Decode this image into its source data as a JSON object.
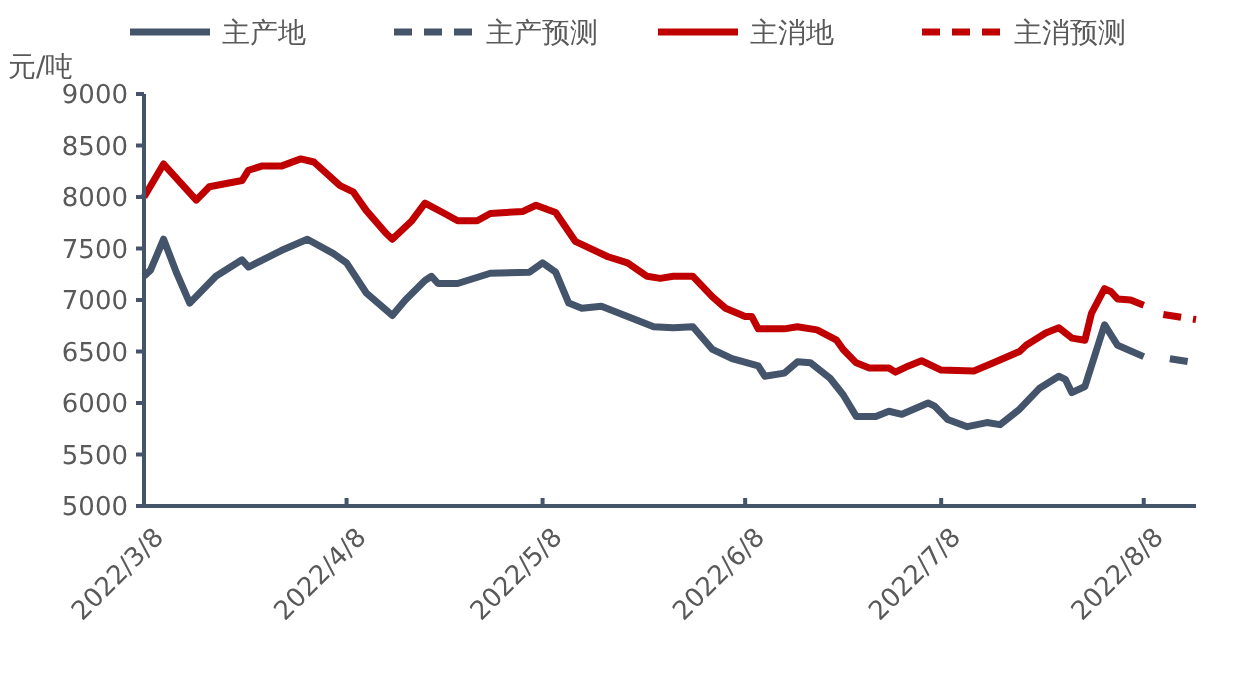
{
  "chart_data": {
    "type": "line",
    "ylabel": "元/吨",
    "legend": "top",
    "grid": false,
    "marker": "none",
    "xlim": [
      "2022-03-08",
      "2022-08-16"
    ],
    "xticks": [
      {
        "value": "2022-03-08",
        "label": "2022/3/8"
      },
      {
        "value": "2022-04-08",
        "label": "2022/4/8"
      },
      {
        "value": "2022-05-08",
        "label": "2022/5/8"
      },
      {
        "value": "2022-06-08",
        "label": "2022/6/8"
      },
      {
        "value": "2022-07-08",
        "label": "2022/7/8"
      },
      {
        "value": "2022-08-08",
        "label": "2022/8/8"
      }
    ],
    "ylim": [
      5000,
      9000
    ],
    "yticks": [
      5000,
      5500,
      6000,
      6500,
      7000,
      7500,
      8000,
      8500,
      9000
    ],
    "series": [
      {
        "name": "主产地",
        "color": "#44546a",
        "line_style": "solid",
        "x": [
          "2022-03-08",
          "2022-03-09",
          "2022-03-11",
          "2022-03-13",
          "2022-03-15",
          "2022-03-19",
          "2022-03-23",
          "2022-03-24",
          "2022-03-29",
          "2022-04-02",
          "2022-04-06",
          "2022-04-08",
          "2022-04-11",
          "2022-04-15",
          "2022-04-17",
          "2022-04-20",
          "2022-04-21",
          "2022-04-22",
          "2022-04-25",
          "2022-04-30",
          "2022-05-06",
          "2022-05-08",
          "2022-05-10",
          "2022-05-12",
          "2022-05-14",
          "2022-05-17",
          "2022-05-21",
          "2022-05-25",
          "2022-05-28",
          "2022-05-31",
          "2022-06-03",
          "2022-06-06",
          "2022-06-10",
          "2022-06-11",
          "2022-06-14",
          "2022-06-16",
          "2022-06-18",
          "2022-06-21",
          "2022-06-23",
          "2022-06-25",
          "2022-06-28",
          "2022-06-30",
          "2022-07-02",
          "2022-07-06",
          "2022-07-07",
          "2022-07-09",
          "2022-07-12",
          "2022-07-15",
          "2022-07-17",
          "2022-07-20",
          "2022-07-23",
          "2022-07-26",
          "2022-07-27",
          "2022-07-28",
          "2022-07-30",
          "2022-08-02",
          "2022-08-04",
          "2022-08-08"
        ],
        "values": [
          7230,
          7290,
          7590,
          7260,
          6970,
          7230,
          7390,
          7320,
          7480,
          7590,
          7450,
          7360,
          7070,
          6850,
          7000,
          7190,
          7230,
          7160,
          7160,
          7260,
          7270,
          7360,
          7270,
          6970,
          6920,
          6940,
          6840,
          6740,
          6730,
          6740,
          6520,
          6430,
          6360,
          6260,
          6290,
          6400,
          6390,
          6240,
          6080,
          5870,
          5870,
          5920,
          5890,
          6000,
          5970,
          5840,
          5770,
          5810,
          5790,
          5940,
          6140,
          6260,
          6230,
          6100,
          6160,
          6760,
          6560,
          6450
        ]
      },
      {
        "name": "主产预测",
        "color": "#44546a",
        "line_style": "dashed",
        "x": [
          "2022-08-12",
          "2022-08-16"
        ],
        "values": [
          6430,
          6390
        ]
      },
      {
        "name": "主消地",
        "color": "#c00000",
        "line_style": "solid",
        "x": [
          "2022-03-08",
          "2022-03-11",
          "2022-03-16",
          "2022-03-18",
          "2022-03-23",
          "2022-03-24",
          "2022-03-26",
          "2022-03-29",
          "2022-04-01",
          "2022-04-03",
          "2022-04-07",
          "2022-04-09",
          "2022-04-11",
          "2022-04-14",
          "2022-04-15",
          "2022-04-18",
          "2022-04-20",
          "2022-04-23",
          "2022-04-25",
          "2022-04-28",
          "2022-04-30",
          "2022-05-05",
          "2022-05-07",
          "2022-05-10",
          "2022-05-13",
          "2022-05-16",
          "2022-05-18",
          "2022-05-21",
          "2022-05-24",
          "2022-05-26",
          "2022-05-28",
          "2022-05-31",
          "2022-06-03",
          "2022-06-05",
          "2022-06-08",
          "2022-06-09",
          "2022-06-10",
          "2022-06-14",
          "2022-06-16",
          "2022-06-19",
          "2022-06-22",
          "2022-06-23",
          "2022-06-25",
          "2022-06-27",
          "2022-06-30",
          "2022-07-01",
          "2022-07-03",
          "2022-07-05",
          "2022-07-08",
          "2022-07-13",
          "2022-07-16",
          "2022-07-20",
          "2022-07-21",
          "2022-07-24",
          "2022-07-26",
          "2022-07-28",
          "2022-07-30",
          "2022-07-31",
          "2022-08-02",
          "2022-08-03",
          "2022-08-04",
          "2022-08-06",
          "2022-08-08"
        ],
        "values": [
          8000,
          8320,
          7970,
          8100,
          8160,
          8260,
          8300,
          8300,
          8370,
          8340,
          8110,
          8050,
          7870,
          7650,
          7590,
          7770,
          7940,
          7840,
          7770,
          7770,
          7840,
          7860,
          7920,
          7850,
          7570,
          7480,
          7420,
          7360,
          7230,
          7210,
          7230,
          7230,
          7030,
          6920,
          6840,
          6840,
          6720,
          6720,
          6740,
          6710,
          6610,
          6520,
          6390,
          6340,
          6340,
          6300,
          6360,
          6410,
          6320,
          6310,
          6390,
          6500,
          6560,
          6680,
          6730,
          6630,
          6610,
          6870,
          7110,
          7080,
          7010,
          7000,
          6950
        ]
      },
      {
        "name": "主消预测",
        "color": "#c00000",
        "line_style": "dashed",
        "x": [
          "2022-08-11",
          "2022-08-16"
        ],
        "values": [
          6860,
          6810
        ]
      }
    ]
  }
}
